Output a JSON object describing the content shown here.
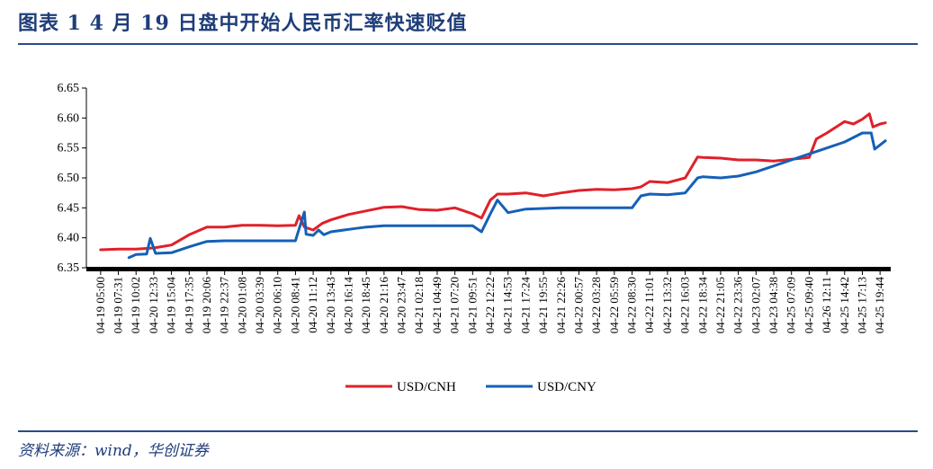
{
  "title": "图表 1    4 月 19 日盘中开始人民币汇率快速贬值",
  "source": "资料来源：wind，华创证券",
  "chart_data": {
    "type": "line",
    "ylim": [
      6.35,
      6.65
    ],
    "y_ticks": [
      "6.35",
      "6.40",
      "6.45",
      "6.50",
      "6.55",
      "6.60",
      "6.65"
    ],
    "categories": [
      "04-19 05:00",
      "04-19 07:31",
      "04-19 10:02",
      "04-20 12:33",
      "04-19 15:04",
      "04-19 17:35",
      "04-19 20:06",
      "04-19 22:37",
      "04-20 01:08",
      "04-20 03:39",
      "04-20 06:10",
      "04-20 08:41",
      "04-20 11:12",
      "04-20 13:43",
      "04-20 16:14",
      "04-20 18:45",
      "04-20 21:16",
      "04-20 23:47",
      "04-21 02:18",
      "04-21 04:49",
      "04-21 07:20",
      "04-21 09:51",
      "04-22 12:22",
      "04-21 14:53",
      "04-21 17:24",
      "04-21 19:55",
      "04-21 22:26",
      "04-22 00:57",
      "04-22 03:28",
      "04-22 05:59",
      "04-22 08:30",
      "04-22 11:01",
      "04-22 13:32",
      "04-22 16:03",
      "04-22 18:34",
      "04-22 21:05",
      "04-22 23:36",
      "04-23 02:07",
      "04-23 04:38",
      "04-25 07:09",
      "04-25 09:40",
      "04-26 12:11",
      "04-25 14:42",
      "04-25 17:13",
      "04-25 19:44"
    ],
    "legend": "bottom",
    "series": [
      {
        "name": "USD/CNH",
        "color": "#e0202a",
        "x": [
          0,
          1,
          2,
          3,
          4,
          5,
          6,
          7,
          8,
          9,
          10,
          11,
          11.2,
          11.5,
          12,
          12.5,
          13,
          14,
          15,
          16,
          17,
          18,
          19,
          20,
          21,
          21.5,
          22,
          22.4,
          23,
          24,
          25,
          26,
          27,
          28,
          29,
          30,
          30.5,
          31,
          32,
          33,
          33.7,
          34,
          35,
          36,
          37,
          38,
          39,
          40,
          40.4,
          41,
          42,
          42.5,
          43,
          43.4,
          43.6,
          44,
          44.3
        ],
        "values": [
          6.38,
          6.381,
          6.381,
          6.383,
          6.388,
          6.405,
          6.418,
          6.418,
          6.421,
          6.421,
          6.42,
          6.421,
          6.437,
          6.418,
          6.413,
          6.424,
          6.43,
          6.439,
          6.445,
          6.451,
          6.452,
          6.447,
          6.446,
          6.45,
          6.44,
          6.433,
          6.463,
          6.473,
          6.473,
          6.475,
          6.47,
          6.475,
          6.479,
          6.481,
          6.48,
          6.482,
          6.485,
          6.494,
          6.492,
          6.5,
          6.535,
          6.534,
          6.533,
          6.53,
          6.53,
          6.528,
          6.531,
          6.534,
          6.565,
          6.575,
          6.594,
          6.59,
          6.598,
          6.607,
          6.585,
          6.59,
          6.592
        ]
      },
      {
        "name": "USD/CNY",
        "color": "#1560b8",
        "x": [
          1.6,
          2,
          2.6,
          2.8,
          3.1,
          4,
          5,
          6,
          7,
          8,
          9,
          10,
          11,
          11.1,
          11.5,
          11.6,
          12,
          12.3,
          12.6,
          13,
          14,
          15,
          16,
          17,
          18,
          19,
          20,
          21,
          21.5,
          22,
          22.4,
          23,
          24,
          25,
          26,
          27,
          28,
          29,
          30,
          30.5,
          31,
          32,
          33,
          33.7,
          34,
          35,
          36,
          37,
          38,
          39,
          40,
          41,
          42,
          43,
          43.5,
          43.7,
          44,
          44.3
        ],
        "values": [
          6.367,
          6.372,
          6.373,
          6.399,
          6.374,
          6.375,
          6.385,
          6.394,
          6.395,
          6.395,
          6.395,
          6.395,
          6.395,
          6.405,
          6.443,
          6.406,
          6.404,
          6.413,
          6.405,
          6.41,
          6.414,
          6.418,
          6.42,
          6.42,
          6.42,
          6.42,
          6.42,
          6.42,
          6.41,
          6.44,
          6.463,
          6.442,
          6.448,
          6.449,
          6.45,
          6.45,
          6.45,
          6.45,
          6.45,
          6.47,
          6.473,
          6.472,
          6.475,
          6.5,
          6.502,
          6.5,
          6.503,
          6.51,
          6.52,
          6.53,
          6.54,
          6.55,
          6.56,
          6.575,
          6.575,
          6.548,
          6.555,
          6.562
        ]
      }
    ]
  }
}
